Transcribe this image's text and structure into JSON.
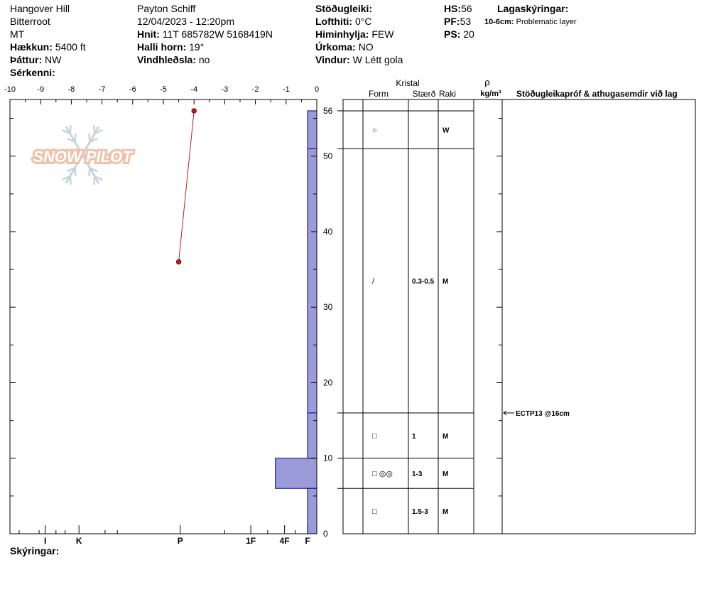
{
  "header": {
    "col1": {
      "location": "Hangover Hill",
      "range": "Bitterroot",
      "state": "MT",
      "elevation_label": "Hækkun:",
      "elevation": "5400 ft",
      "aspect_label": "Þáttur:",
      "aspect": "NW",
      "features_label": "Sérkenni:"
    },
    "col2": {
      "observer": "Payton Schiff",
      "datetime": "12/04/2023 - 12:20pm",
      "coords_label": "Hnit:",
      "coords": "11T 685782W 5168419N",
      "slope_label": "Halli horn:",
      "slope": "19°",
      "wind_loading_label": "Vindhleðsla:",
      "wind_loading": "no"
    },
    "col3": {
      "stability_label": "Stöðugleiki:",
      "air_temp_label": "Lofthiti:",
      "air_temp": "0°C",
      "sky_label": "Himinhylja:",
      "sky": "FEW",
      "precip_label": "Úrkoma:",
      "precip": "NO",
      "wind_label": "Vindur:",
      "wind": "W Létt gola"
    },
    "col4": {
      "hs_label": "HS:",
      "hs": "56",
      "pf_label": "PF:",
      "pf": "53",
      "ps_label": "PS:",
      "ps": "20"
    },
    "layer_notes_label": "Lagaskýringar:",
    "layer_notes_range": "10-6cm:",
    "layer_notes_text": "Problematic layer"
  },
  "footer": {
    "notes_label": "Skýringar:"
  },
  "logo_text": "SNOW PILOT",
  "table_headers": {
    "kristal": "Kristal",
    "form": "Form",
    "size": "Stærð",
    "moisture": "Raki",
    "density_symbol": "ρ",
    "density_unit": "kg/m³",
    "comments": "Stöðugleikapróf & athugasemdir við lag"
  },
  "colors": {
    "hardness_fill": "#9b9bd9",
    "hardness_stroke": "#00008b",
    "temp_line": "#b22222",
    "logo_text": "#f0c0a8",
    "logo_flake": "#c8d3dc"
  },
  "chart_data": {
    "type": "snow-profile",
    "temperature_axis": {
      "ticks": [
        "-10",
        "-9",
        "-8",
        "-7",
        "-6",
        "-5",
        "-4",
        "-3",
        "-2",
        "-1",
        "0"
      ],
      "range": [
        -10,
        0
      ]
    },
    "height_axis": {
      "ticks": [
        "0",
        "10",
        "20",
        "30",
        "40",
        "50",
        "56"
      ],
      "range": [
        0,
        57.5
      ]
    },
    "hardness_axis": {
      "labels": [
        "I",
        "K",
        "P",
        "1F",
        "4F",
        "F"
      ],
      "label_positions_temp": [
        -8.85,
        -7.75,
        -4.45,
        -2.15,
        -1.05,
        -0.3
      ]
    },
    "temperature_profile": [
      {
        "height": 56,
        "temp": -4.0
      },
      {
        "height": 36,
        "temp": -4.5
      }
    ],
    "hardness_layers": [
      {
        "top": 56,
        "bottom": 51,
        "hardness": "F"
      },
      {
        "top": 51,
        "bottom": 16,
        "hardness": "F"
      },
      {
        "top": 16,
        "bottom": 10,
        "hardness": "F"
      },
      {
        "top": 10,
        "bottom": 6,
        "hardness": "4F+"
      },
      {
        "top": 6,
        "bottom": 0,
        "hardness": "F"
      }
    ],
    "layers": [
      {
        "top": 56,
        "bottom": 51,
        "form": "○",
        "size": "",
        "moisture": "W"
      },
      {
        "top": 51,
        "bottom": 16,
        "form": "/",
        "size": "0.3-0.5",
        "moisture": "M"
      },
      {
        "top": 16,
        "bottom": 10,
        "form": "□",
        "size": "1",
        "moisture": "M"
      },
      {
        "top": 10,
        "bottom": 6,
        "form": "□ ◎◎",
        "size": "1-3",
        "moisture": "M"
      },
      {
        "top": 6,
        "bottom": 0,
        "form": "□",
        "size": "1.5-3",
        "moisture": "M"
      }
    ],
    "tests": [
      {
        "height": 16,
        "result": "ECTP13 @16cm"
      }
    ]
  }
}
